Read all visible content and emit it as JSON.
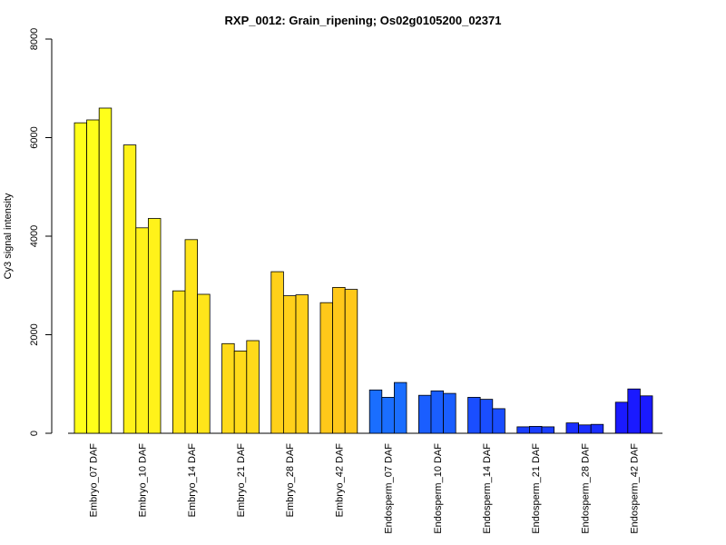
{
  "chart_data": {
    "type": "bar",
    "title": "RXP_0012: Grain_ripening; Os02g0105200_02371",
    "xlabel": "",
    "ylabel": "Cy3 signal intensity",
    "ylim": [
      0,
      8000
    ],
    "yticks": [
      "0",
      "2000",
      "4000",
      "6000",
      "8000"
    ],
    "grid": false,
    "categories": [
      "Embryo_07 DAF",
      "Embryo_10 DAF",
      "Embryo_14 DAF",
      "Embryo_21 DAF",
      "Embryo_28 DAF",
      "Embryo_42 DAF",
      "Endosperm_07 DAF",
      "Endosperm_10 DAF",
      "Endosperm_14 DAF",
      "Endosperm_21 DAF",
      "Endosperm_28 DAF",
      "Endosperm_42 DAF"
    ],
    "group_colors": [
      "#FFFF1A",
      "#FFF21A",
      "#FFE51A",
      "#FFDA1A",
      "#FFD01A",
      "#FFC81A",
      "#1A6EFF",
      "#1A5EFF",
      "#1A4EFF",
      "#1A3EFF",
      "#1A2EFF",
      "#1A1AFF"
    ],
    "values": [
      [
        6300,
        6360,
        6600
      ],
      [
        5850,
        4170,
        4360
      ],
      [
        2890,
        3930,
        2820
      ],
      [
        1820,
        1670,
        1880
      ],
      [
        3280,
        2790,
        2810
      ],
      [
        2650,
        2960,
        2920
      ],
      [
        880,
        730,
        1030
      ],
      [
        770,
        860,
        810
      ],
      [
        730,
        690,
        500
      ],
      [
        130,
        140,
        130
      ],
      [
        210,
        170,
        180
      ],
      [
        630,
        900,
        760
      ]
    ]
  }
}
